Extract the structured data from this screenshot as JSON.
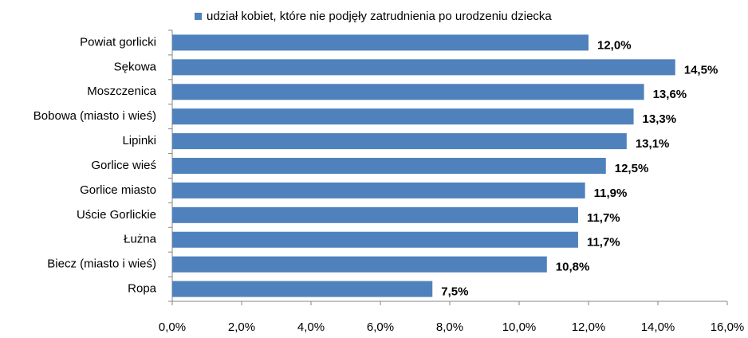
{
  "chart_data": {
    "type": "bar",
    "categories": [
      "Powiat gorlicki",
      "Sękowa",
      "Moszczenica",
      "Bobowa (miasto  i wieś)",
      "Lipinki",
      "Gorlice wieś",
      "Gorlice miasto",
      "Uście Gorlickie",
      "Łużna",
      "Biecz (miasto  i wieś)",
      "Ropa"
    ],
    "series": [
      {
        "name": "udział kobiet, które nie podjęły zatrudnienia po urodzeniu dziecka",
        "color": "#4f81bd",
        "values": [
          12.0,
          14.5,
          13.6,
          13.3,
          13.1,
          12.5,
          11.9,
          11.7,
          11.7,
          10.8,
          7.5
        ],
        "value_labels": [
          "12,0%",
          "14,5%",
          "13,6%",
          "13,3%",
          "13,1%",
          "12,5%",
          "11,9%",
          "11,7%",
          "11,7%",
          "10,8%",
          "7,5%"
        ]
      }
    ],
    "xlim": [
      0,
      16
    ],
    "xticks": [
      {
        "value": 0,
        "label": "0,0%"
      },
      {
        "value": 2,
        "label": "2,0%"
      },
      {
        "value": 4,
        "label": "4,0%"
      },
      {
        "value": 6,
        "label": "6,0%"
      },
      {
        "value": 8,
        "label": "8,0%"
      },
      {
        "value": 10,
        "label": "10,0%"
      },
      {
        "value": 12,
        "label": "12,0%"
      },
      {
        "value": 14,
        "label": "14,0%"
      },
      {
        "value": 16,
        "label": "16,0%"
      }
    ],
    "legend": "top"
  }
}
